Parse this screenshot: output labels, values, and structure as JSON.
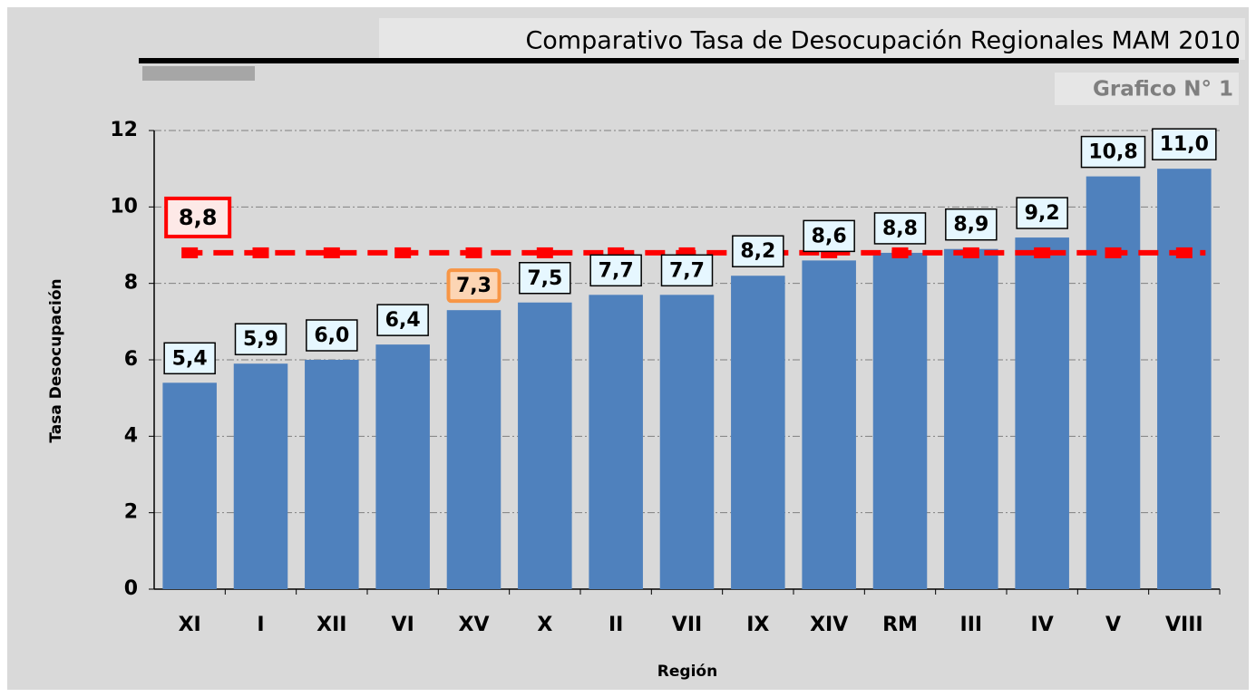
{
  "chart_data": {
    "type": "bar",
    "title": "Comparativo Tasa de Desocupación Regionales MAM 2010",
    "subtitle": "Grafico N° 1",
    "y_label": "Tasa Desocupación",
    "x_label": "Región",
    "categories": [
      "XI",
      "I",
      "XII",
      "VI",
      "XV",
      "X",
      "II",
      "VII",
      "IX",
      "XIV",
      "RM",
      "III",
      "IV",
      "V",
      "VIII"
    ],
    "values": [
      5.4,
      5.9,
      6.0,
      6.4,
      7.3,
      7.5,
      7.7,
      7.7,
      8.2,
      8.6,
      8.8,
      8.9,
      9.2,
      10.8,
      11.0
    ],
    "value_labels": [
      "5,4",
      "5,9",
      "6,0",
      "6,4",
      "7,3",
      "7,5",
      "7,7",
      "7,7",
      "8,2",
      "8,6",
      "8,8",
      "8,9",
      "9,2",
      "10,8",
      "11,0"
    ],
    "color": "#4f81bd",
    "highlight": {
      "index": 4,
      "color": "#f79646"
    },
    "reference_line": {
      "value": 8.8,
      "label": "8,8",
      "color": "#ff0000"
    },
    "ylim": [
      0,
      12
    ],
    "yticks": [
      0,
      2,
      4,
      6,
      8,
      10,
      12
    ],
    "grid": true
  }
}
